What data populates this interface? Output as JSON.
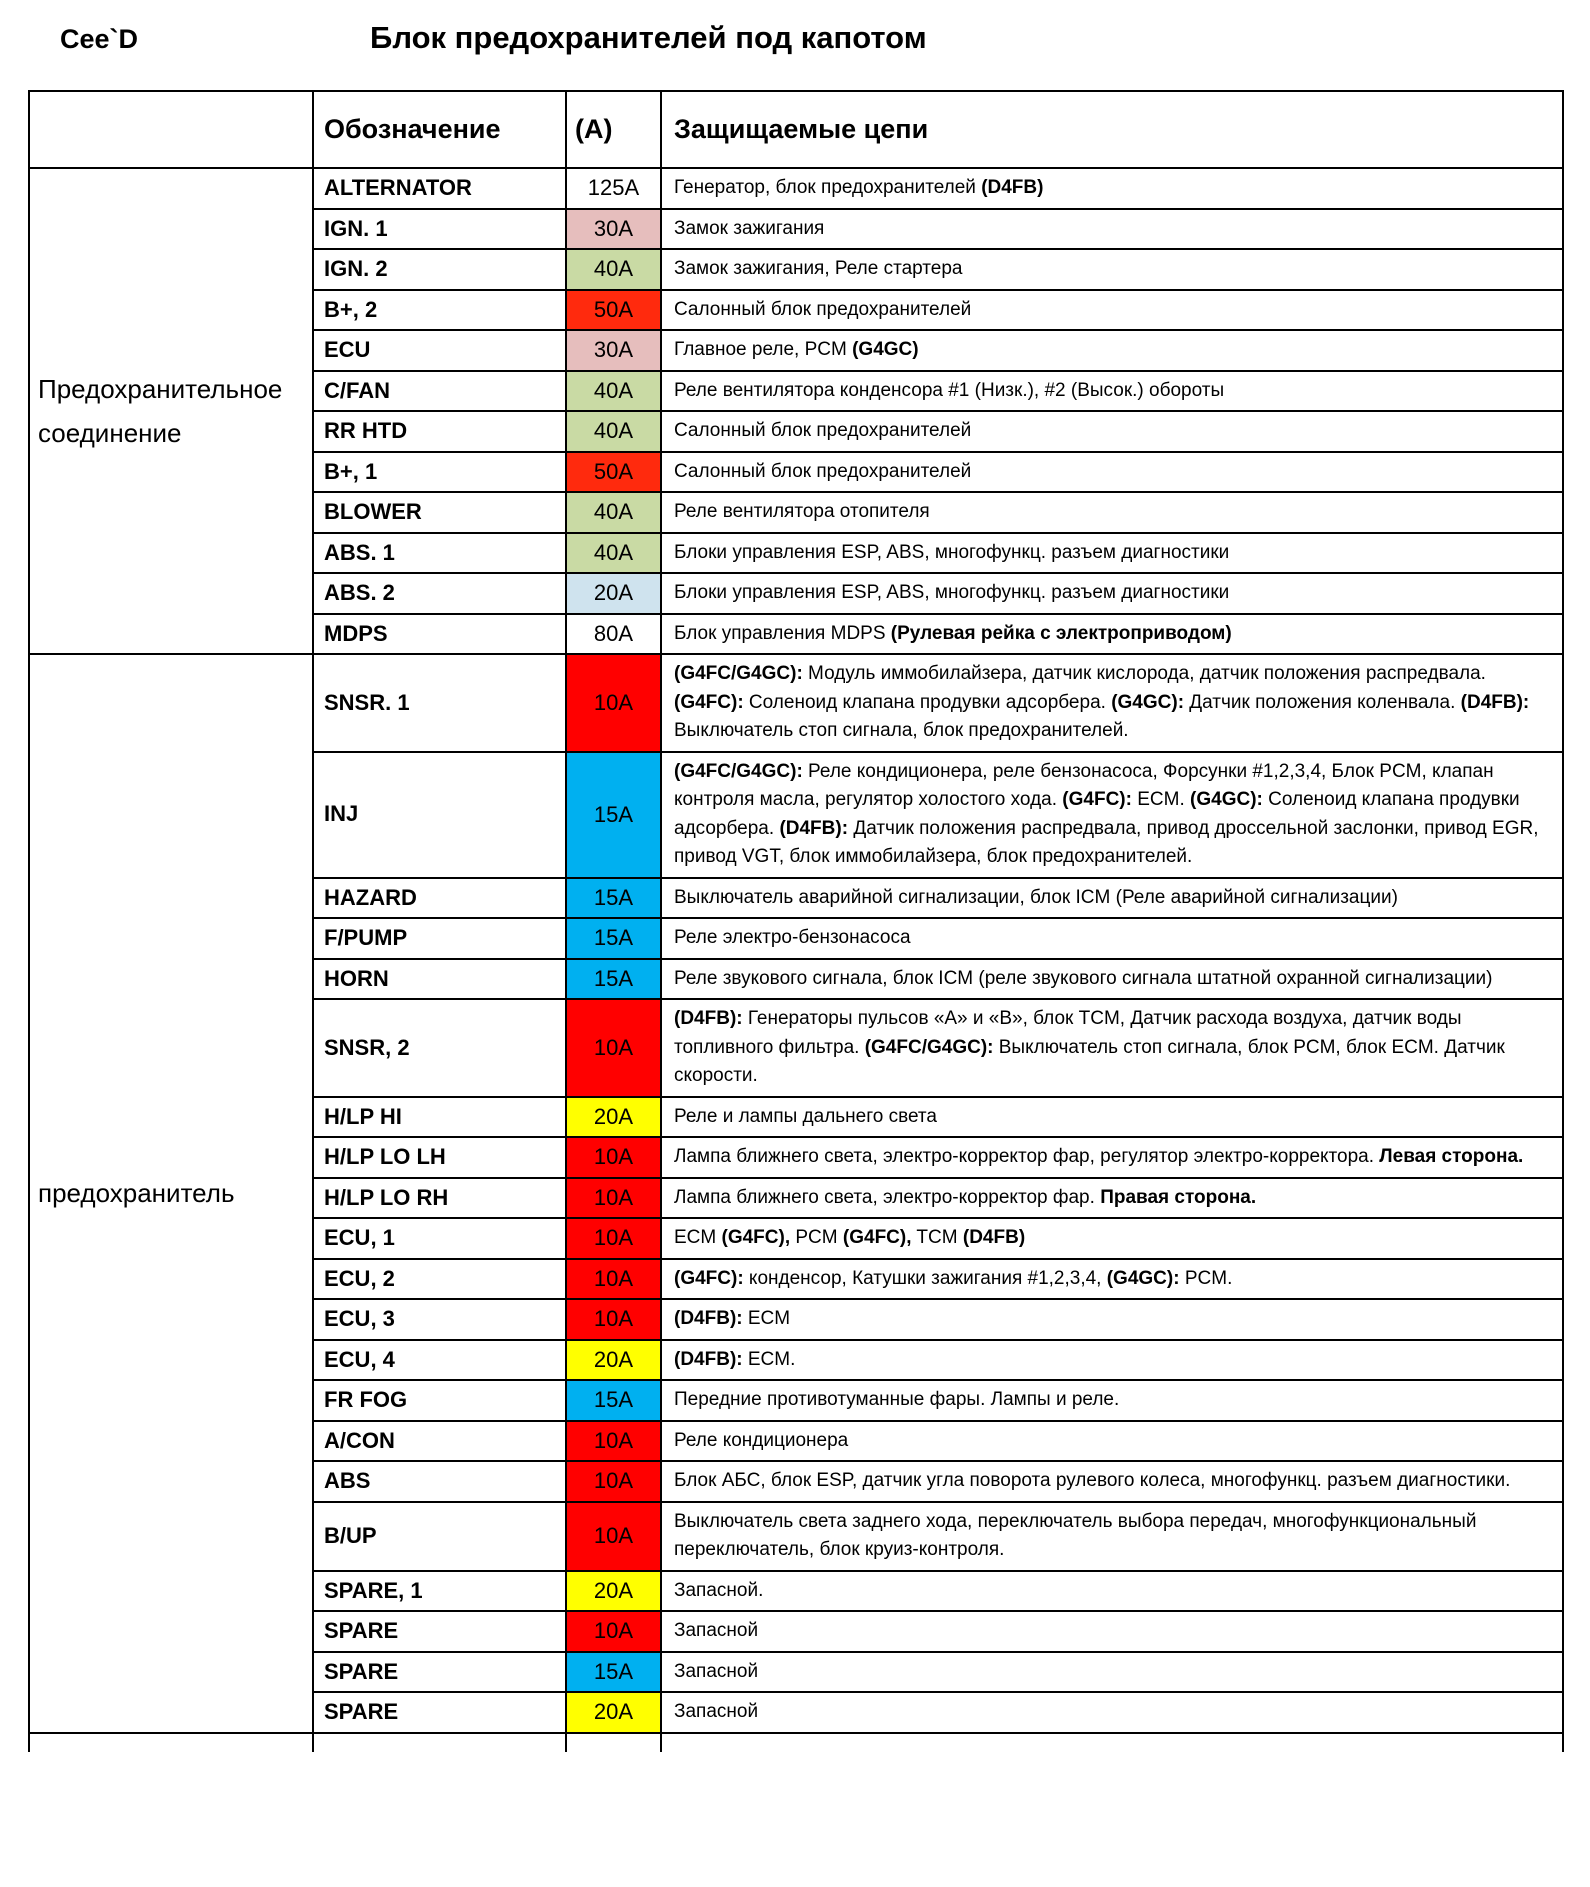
{
  "page": {
    "brand": "Cee`D",
    "title": "Блок предохранителей под капотом"
  },
  "colors": {
    "white": "#ffffff",
    "pink": "#e6bebd",
    "green": "#c9daa4",
    "orange_red": "#ff2a0d",
    "light_blue": "#cfe3ee",
    "red": "#ff0000",
    "blue": "#00b0f0",
    "yellow": "#ffff00"
  },
  "table": {
    "headers": {
      "designation": "Обозначение",
      "amp": "(А)",
      "circuits": "Защищаемые цепи"
    },
    "groups": [
      {
        "label": "Предохранительное соединение",
        "rows": [
          {
            "designation": "ALTERNATOR",
            "amp": "125А",
            "amp_color": "white",
            "circuit": [
              {
                "t": "Генератор, блок предохранителей "
              },
              {
                "t": "(D4FB)",
                "b": true
              }
            ]
          },
          {
            "designation": "IGN. 1",
            "amp": "30А",
            "amp_color": "pink",
            "circuit": [
              {
                "t": "Замок зажигания"
              }
            ]
          },
          {
            "designation": "IGN. 2",
            "amp": "40А",
            "amp_color": "green",
            "circuit": [
              {
                "t": "Замок зажигания, Реле стартера"
              }
            ]
          },
          {
            "designation": "B+, 2",
            "amp": "50А",
            "amp_color": "orange_red",
            "circuit": [
              {
                "t": "Салонный блок предохранителей"
              }
            ]
          },
          {
            "designation": "ECU",
            "amp": "30А",
            "amp_color": "pink",
            "circuit": [
              {
                "t": "Главное реле, PCM "
              },
              {
                "t": "(G4GC)",
                "b": true
              }
            ]
          },
          {
            "designation": "C/FAN",
            "amp": "40А",
            "amp_color": "green",
            "circuit": [
              {
                "t": "Реле вентилятора конденсора #1 (Низк.), #2 (Высок.) обороты"
              }
            ]
          },
          {
            "designation": "RR HTD",
            "amp": "40А",
            "amp_color": "green",
            "circuit": [
              {
                "t": "Салонный блок предохранителей"
              }
            ]
          },
          {
            "designation": "B+, 1",
            "amp": "50А",
            "amp_color": "orange_red",
            "circuit": [
              {
                "t": "Салонный блок предохранителей"
              }
            ]
          },
          {
            "designation": "BLOWER",
            "amp": "40А",
            "amp_color": "green",
            "circuit": [
              {
                "t": "Реле вентилятора отопителя"
              }
            ]
          },
          {
            "designation": "ABS. 1",
            "amp": "40А",
            "amp_color": "green",
            "circuit": [
              {
                "t": "Блоки управления ESP, ABS, многофункц. разъем диагностики"
              }
            ]
          },
          {
            "designation": "ABS. 2",
            "amp": "20А",
            "amp_color": "light_blue",
            "circuit": [
              {
                "t": "Блоки управления ESP, ABS, многофункц. разъем диагностики"
              }
            ]
          },
          {
            "designation": "MDPS",
            "amp": "80А",
            "amp_color": "white",
            "circuit": [
              {
                "t": "Блок управления MDPS "
              },
              {
                "t": "(Рулевая рейка с электроприводом)",
                "b": true
              }
            ]
          }
        ]
      },
      {
        "label": "предохранитель",
        "rows": [
          {
            "designation": "SNSR. 1",
            "amp": "10А",
            "amp_color": "red",
            "circuit": [
              {
                "t": "(G4FC/G4GC):",
                "b": true
              },
              {
                "t": " Модуль иммобилайзера, датчик кислорода, датчик положения распредвала. "
              },
              {
                "t": "(G4FC):",
                "b": true
              },
              {
                "t": " Соленоид клапана продувки адсорбера. "
              },
              {
                "t": "(G4GC):",
                "b": true
              },
              {
                "t": " Датчик положения коленвала. "
              },
              {
                "t": "(D4FB):",
                "b": true
              },
              {
                "t": " Выключатель стоп сигнала, блок предохранителей."
              }
            ]
          },
          {
            "designation": "INJ",
            "amp": "15А",
            "amp_color": "blue",
            "circuit": [
              {
                "t": "(G4FC/G4GC):",
                "b": true
              },
              {
                "t": " Реле кондиционера, реле бензонасоса, Форсунки #1,2,3,4, Блок PCM, клапан контроля масла, регулятор холостого хода. "
              },
              {
                "t": "(G4FC):",
                "b": true
              },
              {
                "t": " ECM. "
              },
              {
                "t": "(G4GC):",
                "b": true
              },
              {
                "t": " Соленоид клапана продувки адсорбера. "
              },
              {
                "t": "(D4FB):",
                "b": true
              },
              {
                "t": "  Датчик положения распредвала, привод дроссельной заслонки, привод EGR, привод VGT, блок иммобилайзера, блок предохранителей."
              }
            ]
          },
          {
            "designation": "HAZARD",
            "amp": "15А",
            "amp_color": "blue",
            "circuit": [
              {
                "t": "Выключатель аварийной сигнализации, блок ICM (Реле аварийной сигнализации)"
              }
            ]
          },
          {
            "designation": "F/PUMP",
            "amp": "15А",
            "amp_color": "blue",
            "circuit": [
              {
                "t": "Реле электро-бензонасоса"
              }
            ]
          },
          {
            "designation": "HORN",
            "amp": "15А",
            "amp_color": "blue",
            "circuit": [
              {
                "t": "Реле звукового сигнала, блок ICM (реле звукового сигнала штатной охранной сигнализации)"
              }
            ]
          },
          {
            "designation": "SNSR, 2",
            "amp": "10А",
            "amp_color": "red",
            "circuit": [
              {
                "t": "(D4FB):",
                "b": true
              },
              {
                "t": " Генераторы пульсов «А» и «В», блок TCM, Датчик расхода воздуха, датчик воды топливного фильтра. "
              },
              {
                "t": "(G4FC/G4GC):",
                "b": true
              },
              {
                "t": " Выключатель стоп сигнала, блок PCM, блок ECM.  Датчик скорости."
              }
            ]
          },
          {
            "designation": "H/LP HI",
            "amp": "20А",
            "amp_color": "yellow",
            "circuit": [
              {
                "t": "Реле и лампы дальнего света"
              }
            ]
          },
          {
            "designation": "H/LP LO LH",
            "amp": "10А",
            "amp_color": "red",
            "circuit": [
              {
                "t": "Лампа ближнего света, электро-корректор фар, регулятор электро-корректора. "
              },
              {
                "t": "Левая сторона.",
                "b": true
              }
            ]
          },
          {
            "designation": "H/LP LO RH",
            "amp": "10А",
            "amp_color": "red",
            "circuit": [
              {
                "t": "Лампа ближнего света, электро-корректор фар. "
              },
              {
                "t": "Правая сторона.",
                "b": true
              }
            ]
          },
          {
            "designation": "ECU, 1",
            "amp": "10А",
            "amp_color": "red",
            "circuit": [
              {
                "t": "ECM "
              },
              {
                "t": "(G4FC),",
                "b": true
              },
              {
                "t": " PCM "
              },
              {
                "t": "(G4FC),",
                "b": true
              },
              {
                "t": " TCM "
              },
              {
                "t": "(D4FB)",
                "b": true
              }
            ]
          },
          {
            "designation": "ECU, 2",
            "amp": "10А",
            "amp_color": "red",
            "circuit": [
              {
                "t": "(G4FC):",
                "b": true
              },
              {
                "t": " конденсор, Катушки зажигания #1,2,3,4, "
              },
              {
                "t": "(G4GC):",
                "b": true
              },
              {
                "t": " PCM."
              }
            ]
          },
          {
            "designation": "ECU, 3",
            "amp": "10А",
            "amp_color": "red",
            "circuit": [
              {
                "t": "(D4FB):",
                "b": true
              },
              {
                "t": " ECM"
              }
            ]
          },
          {
            "designation": "ECU, 4",
            "amp": "20А",
            "amp_color": "yellow",
            "circuit": [
              {
                "t": "(D4FB):",
                "b": true
              },
              {
                "t": " ECM."
              }
            ]
          },
          {
            "designation": "FR FOG",
            "amp": "15А",
            "amp_color": "blue",
            "circuit": [
              {
                "t": "Передние противотуманные фары. Лампы и реле."
              }
            ]
          },
          {
            "designation": "A/CON",
            "amp": "10А",
            "amp_color": "red",
            "circuit": [
              {
                "t": "Реле кондиционера"
              }
            ]
          },
          {
            "designation": "ABS",
            "amp": "10А",
            "amp_color": "red",
            "circuit": [
              {
                "t": "Блок АБС, блок ESP, датчик угла поворота рулевого колеса, многофункц. разъем диагностики."
              }
            ]
          },
          {
            "designation": "B/UP",
            "amp": "10А",
            "amp_color": "red",
            "circuit": [
              {
                "t": "Выключатель света заднего хода, переключатель выбора передач, многофункциональный переключатель, блок  круиз-контроля."
              }
            ]
          },
          {
            "designation": "SPARE, 1",
            "amp": "20А",
            "amp_color": "yellow",
            "circuit": [
              {
                "t": "Запасной."
              }
            ]
          },
          {
            "designation": "SPARE",
            "amp": "10А",
            "amp_color": "red",
            "circuit": [
              {
                "t": "Запасной"
              }
            ]
          },
          {
            "designation": "SPARE",
            "amp": "15А",
            "amp_color": "blue",
            "circuit": [
              {
                "t": "Запасной"
              }
            ]
          },
          {
            "designation": "SPARE",
            "amp": "20А",
            "amp_color": "yellow",
            "circuit": [
              {
                "t": "Запасной"
              }
            ]
          }
        ]
      }
    ]
  }
}
